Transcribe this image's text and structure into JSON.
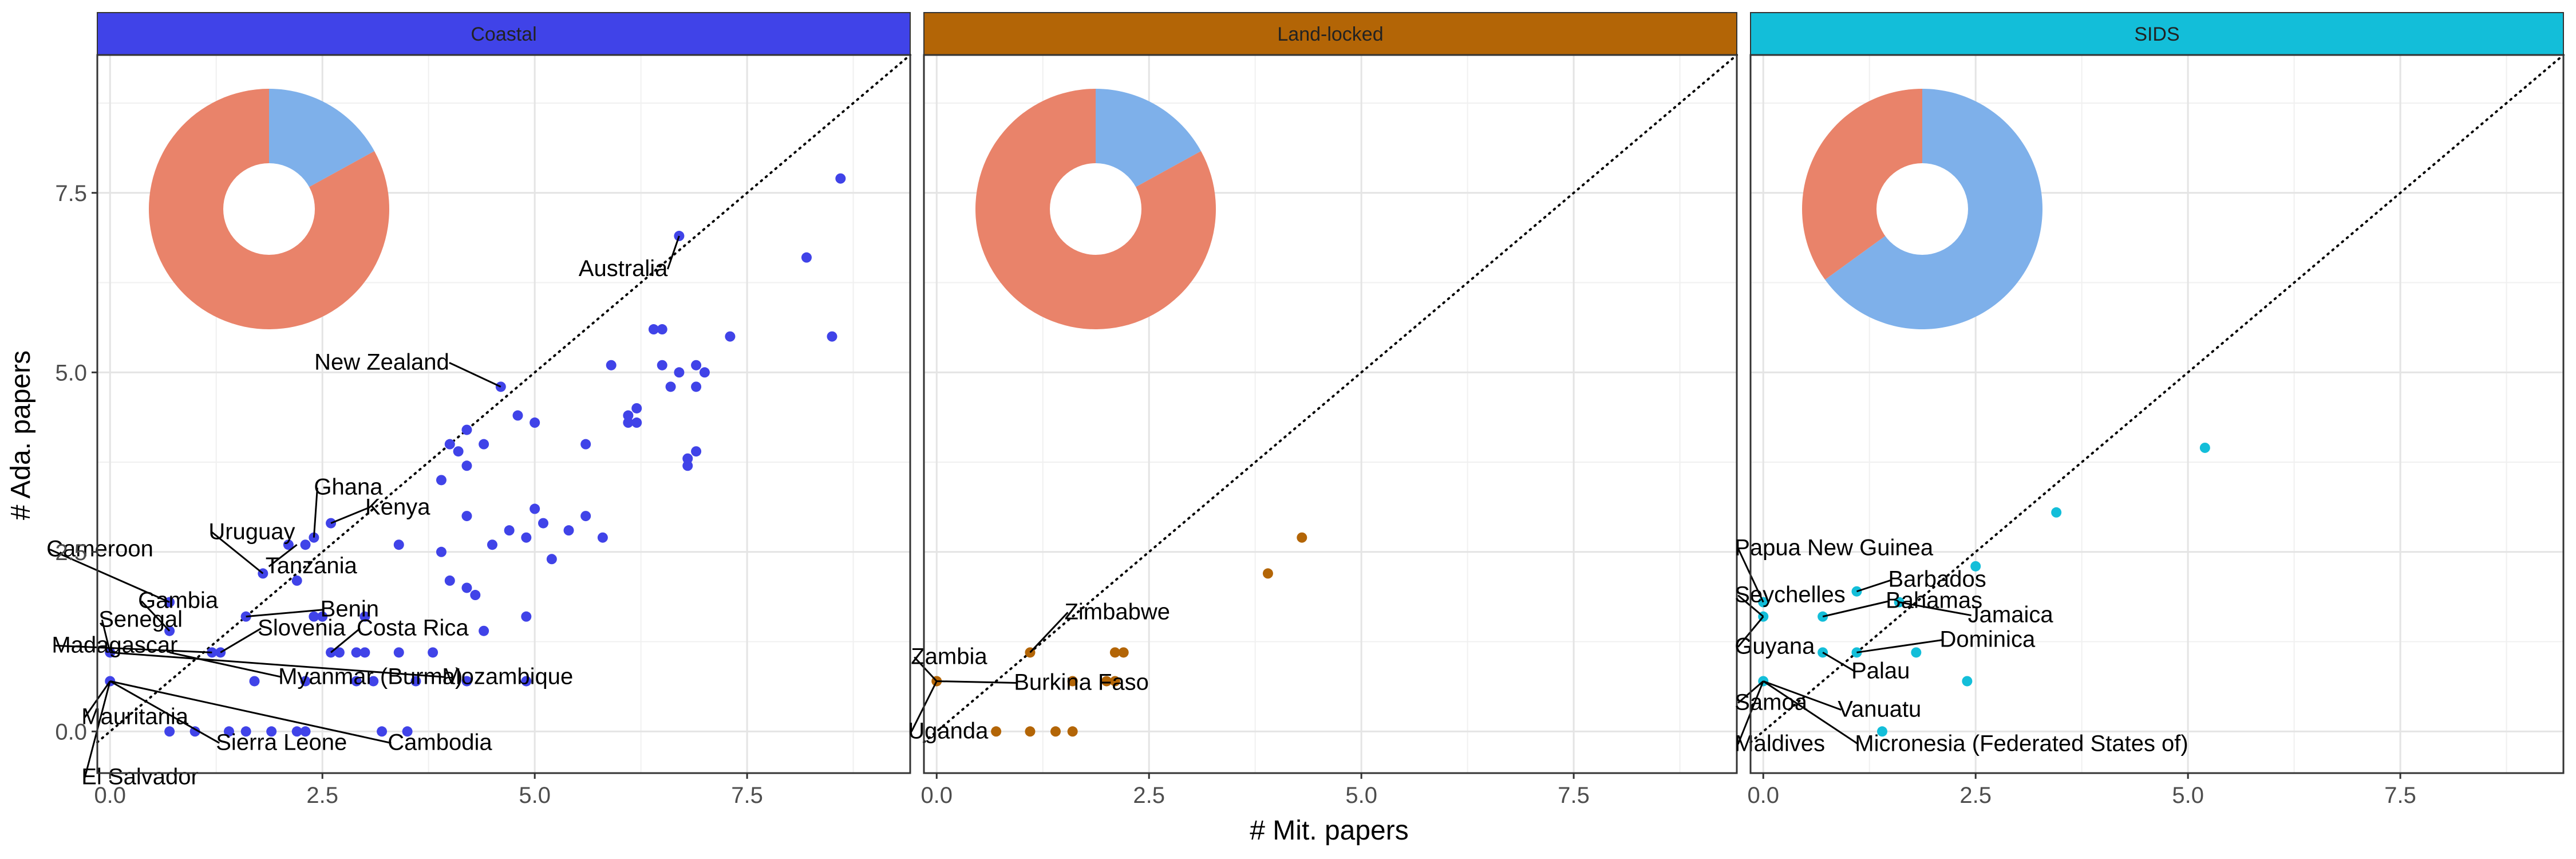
{
  "chart_data": {
    "type": "scatter",
    "xlabel": "# Mit. papers",
    "ylabel": "# Ada. papers",
    "xlim": [
      -0.15,
      9.42
    ],
    "ylim": [
      -0.58,
      9.42
    ],
    "x_ticks": [
      0.0,
      2.5,
      5.0,
      7.5
    ],
    "y_ticks": [
      0.0,
      2.5,
      5.0,
      7.5
    ],
    "x_tick_labels": [
      "0.0",
      "2.5",
      "5.0",
      "7.5"
    ],
    "y_tick_labels": [
      "0.0",
      "2.5",
      "5.0",
      "7.5"
    ],
    "grid": true,
    "reference_line": "y = x (dotted)",
    "legend": "none",
    "pie_colors": {
      "adaptation": "#7eb0ea",
      "mitigation": "#e9836a"
    },
    "panels": [
      {
        "name": "Coastal",
        "color": "#4043e8",
        "pie_fractions": {
          "adaptation": 0.17,
          "mitigation": 0.83
        },
        "points": [
          [
            8.6,
            7.7
          ],
          [
            8.2,
            6.6
          ],
          [
            8.5,
            5.5
          ],
          [
            6.7,
            6.9
          ],
          [
            6.4,
            5.6
          ],
          [
            6.5,
            5.6
          ],
          [
            7.3,
            5.5
          ],
          [
            6.9,
            5.1
          ],
          [
            6.7,
            5.0
          ],
          [
            7.0,
            5.0
          ],
          [
            6.9,
            4.8
          ],
          [
            6.5,
            5.1
          ],
          [
            6.6,
            4.8
          ],
          [
            5.9,
            5.1
          ],
          [
            6.2,
            4.5
          ],
          [
            6.1,
            4.4
          ],
          [
            6.1,
            4.3
          ],
          [
            6.2,
            4.3
          ],
          [
            5.6,
            4.0
          ],
          [
            6.8,
            3.8
          ],
          [
            6.8,
            3.7
          ],
          [
            6.9,
            3.9
          ],
          [
            4.8,
            4.4
          ],
          [
            5.0,
            4.3
          ],
          [
            4.6,
            4.8
          ],
          [
            4.4,
            4.0
          ],
          [
            4.2,
            4.2
          ],
          [
            4.1,
            3.9
          ],
          [
            4.0,
            4.0
          ],
          [
            4.2,
            3.7
          ],
          [
            3.9,
            3.5
          ],
          [
            5.8,
            2.7
          ],
          [
            5.6,
            3.0
          ],
          [
            5.4,
            2.8
          ],
          [
            5.0,
            3.1
          ],
          [
            5.1,
            2.9
          ],
          [
            4.9,
            2.7
          ],
          [
            4.7,
            2.8
          ],
          [
            4.5,
            2.6
          ],
          [
            5.2,
            2.4
          ],
          [
            3.9,
            2.5
          ],
          [
            4.2,
            3.0
          ],
          [
            3.4,
            2.6
          ],
          [
            2.4,
            2.7
          ],
          [
            2.6,
            2.9
          ],
          [
            2.3,
            2.6
          ],
          [
            2.2,
            2.1
          ],
          [
            2.1,
            2.6
          ],
          [
            1.8,
            2.2
          ],
          [
            4.0,
            2.1
          ],
          [
            4.2,
            2.0
          ],
          [
            4.3,
            1.9
          ],
          [
            4.4,
            1.4
          ],
          [
            4.9,
            1.6
          ],
          [
            3.0,
            1.6
          ],
          [
            2.5,
            1.6
          ],
          [
            2.4,
            1.6
          ],
          [
            1.6,
            1.6
          ],
          [
            0.7,
            1.8
          ],
          [
            0.7,
            1.4
          ],
          [
            1.3,
            1.1
          ],
          [
            1.2,
            1.1
          ],
          [
            2.6,
            1.1
          ],
          [
            2.9,
            1.1
          ],
          [
            2.7,
            1.1
          ],
          [
            3.0,
            1.1
          ],
          [
            3.4,
            1.1
          ],
          [
            3.8,
            1.1
          ],
          [
            3.1,
            0.7
          ],
          [
            2.9,
            0.7
          ],
          [
            2.3,
            0.7
          ],
          [
            1.7,
            0.7
          ],
          [
            4.9,
            0.7
          ],
          [
            4.2,
            0.7
          ],
          [
            3.6,
            0.7
          ],
          [
            0.0,
            1.1
          ],
          [
            0.0,
            0.7
          ],
          [
            0.7,
            0.0
          ],
          [
            1.0,
            0.0
          ],
          [
            1.4,
            0.0
          ],
          [
            1.6,
            0.0
          ],
          [
            1.9,
            0.0
          ],
          [
            2.2,
            0.0
          ],
          [
            2.3,
            0.0
          ],
          [
            3.2,
            0.0
          ],
          [
            3.5,
            0.0
          ]
        ],
        "labels": [
          {
            "text": "Australia",
            "x": 6.7,
            "y": 6.9
          },
          {
            "text": "New Zealand",
            "x": 4.6,
            "y": 4.8
          },
          {
            "text": "Ghana",
            "x": 2.4,
            "y": 2.7
          },
          {
            "text": "Uruguay",
            "x": 1.8,
            "y": 2.2
          },
          {
            "text": "Kenya",
            "x": 2.6,
            "y": 2.9
          },
          {
            "text": "Cameroon",
            "x": 0.7,
            "y": 1.8
          },
          {
            "text": "Tanzania",
            "x": 2.2,
            "y": 2.6
          },
          {
            "text": "Gambia",
            "x": 0.7,
            "y": 1.4
          },
          {
            "text": "Madagascar",
            "x": 1.2,
            "y": 1.1
          },
          {
            "text": "Benin",
            "x": 1.6,
            "y": 1.6
          },
          {
            "text": "Senegal",
            "x": 0.0,
            "y": 1.1
          },
          {
            "text": "Slovenia",
            "x": 1.3,
            "y": 1.1
          },
          {
            "text": "Costa Rica",
            "x": 2.6,
            "y": 1.1
          },
          {
            "text": "Myanmar (Burma)",
            "x": 0.7,
            "y": 1.1
          },
          {
            "text": "Mozambique",
            "x": 0.0,
            "y": 1.1
          },
          {
            "text": "Mauritania",
            "x": 0.0,
            "y": 0.7
          },
          {
            "text": "Sierra Leone",
            "x": 0.0,
            "y": 0.7
          },
          {
            "text": "Cambodia",
            "x": 0.0,
            "y": 0.7
          },
          {
            "text": "El Salvador",
            "x": 0.0,
            "y": 0.7
          }
        ]
      },
      {
        "name": "Land-locked",
        "color": "#b36506",
        "pie_fractions": {
          "adaptation": 0.17,
          "mitigation": 0.83
        },
        "points": [
          [
            4.3,
            2.7
          ],
          [
            3.9,
            2.2
          ],
          [
            1.1,
            1.1
          ],
          [
            2.1,
            1.1
          ],
          [
            2.2,
            1.1
          ],
          [
            0.0,
            0.7
          ],
          [
            1.6,
            0.7
          ],
          [
            2.0,
            0.7
          ],
          [
            2.1,
            0.7
          ],
          [
            0.7,
            0.0
          ],
          [
            1.1,
            0.0
          ],
          [
            1.4,
            0.0
          ],
          [
            1.6,
            0.0
          ]
        ],
        "labels": [
          {
            "text": "Zimbabwe",
            "x": 1.1,
            "y": 1.1
          },
          {
            "text": "Zambia",
            "x": 0.0,
            "y": 0.7
          },
          {
            "text": "Burkina Faso",
            "x": 0.0,
            "y": 0.7
          },
          {
            "text": "Uganda",
            "x": 0.0,
            "y": 0.7
          }
        ]
      },
      {
        "name": "SIDS",
        "color": "#13bed9",
        "pie_fractions": {
          "adaptation": 0.65,
          "mitigation": 0.35
        },
        "points": [
          [
            5.2,
            3.95
          ],
          [
            3.45,
            3.05
          ],
          [
            2.5,
            2.3
          ],
          [
            1.1,
            1.95
          ],
          [
            1.6,
            1.8
          ],
          [
            0.0,
            1.8
          ],
          [
            0.0,
            1.6
          ],
          [
            0.7,
            1.6
          ],
          [
            1.1,
            1.1
          ],
          [
            0.7,
            1.1
          ],
          [
            1.8,
            1.1
          ],
          [
            2.4,
            0.7
          ],
          [
            0.0,
            0.7
          ],
          [
            1.4,
            0.0
          ]
        ],
        "labels": [
          {
            "text": "Papua New Guinea",
            "x": 0.0,
            "y": 1.8
          },
          {
            "text": "Seychelles",
            "x": 0.0,
            "y": 1.6
          },
          {
            "text": "Barbados",
            "x": 1.1,
            "y": 1.95
          },
          {
            "text": "Jamaica",
            "x": 1.6,
            "y": 1.8
          },
          {
            "text": "Bahamas",
            "x": 0.7,
            "y": 1.6
          },
          {
            "text": "Guyana",
            "x": 0.0,
            "y": 1.6
          },
          {
            "text": "Dominica",
            "x": 1.1,
            "y": 1.1
          },
          {
            "text": "Palau",
            "x": 0.7,
            "y": 1.1
          },
          {
            "text": "Samoa",
            "x": 0.0,
            "y": 0.7
          },
          {
            "text": "Vanuatu",
            "x": 0.0,
            "y": 0.7
          },
          {
            "text": "Maldives",
            "x": 0.0,
            "y": 0.7
          },
          {
            "text": "Micronesia (Federated States of)",
            "x": 0.0,
            "y": 0.7
          }
        ]
      }
    ]
  }
}
